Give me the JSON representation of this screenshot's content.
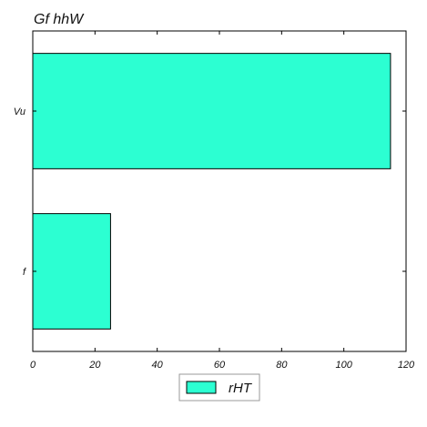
{
  "chart_data": {
    "type": "bar",
    "orientation": "horizontal",
    "title": "Gf hhW",
    "categories": [
      "Vu",
      "f"
    ],
    "series": [
      {
        "name": "rHT",
        "values": [
          115,
          25
        ]
      }
    ],
    "xlim": [
      0,
      120
    ],
    "x_ticks": [
      0,
      20,
      40,
      60,
      80,
      100,
      120
    ],
    "xlabel": "",
    "ylabel": "",
    "grid": false,
    "legend": "bottom-center",
    "colors": {
      "bar_fill": "#2cffd2",
      "bar_stroke": "#000000"
    }
  }
}
